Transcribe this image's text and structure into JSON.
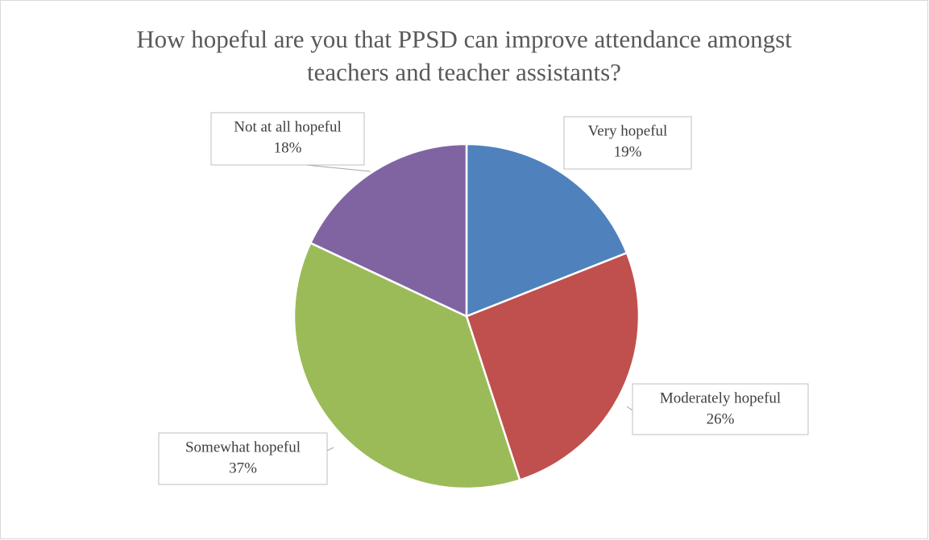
{
  "chart_data": {
    "type": "pie",
    "title": "How hopeful are you that PPSD can improve attendance amongst teachers and teacher assistants?",
    "categories": [
      "Very hopeful",
      "Moderately hopeful",
      "Somewhat hopeful",
      "Not at all hopeful"
    ],
    "values": [
      19,
      26,
      37,
      18
    ],
    "value_labels": [
      "19%",
      "26%",
      "37%",
      "18%"
    ],
    "colors": [
      "#4f81bd",
      "#c0504d",
      "#9bbb59",
      "#8064a2"
    ]
  }
}
